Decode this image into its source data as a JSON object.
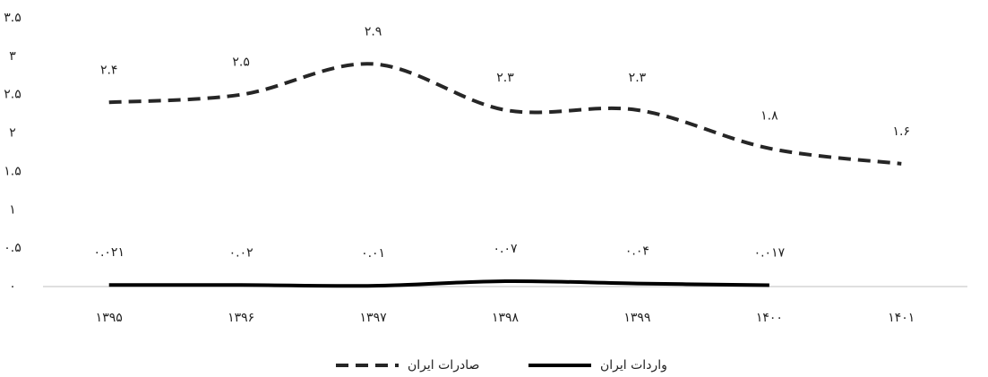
{
  "chart_data": {
    "type": "line",
    "categories": [
      "۱۳۹۵",
      "۱۳۹۶",
      "۱۳۹۷",
      "۱۳۹۸",
      "۱۳۹۹",
      "۱۴۰۰",
      "۱۴۰۱"
    ],
    "series": [
      {
        "name": "صادرات ایران",
        "color": "#262626",
        "line_style": "dashed",
        "values": [
          2.4,
          2.5,
          2.9,
          2.3,
          2.3,
          1.8,
          1.6
        ],
        "value_labels": [
          "۲.۴",
          "۲.۵",
          "۲.۹",
          "۲.۳",
          "۲.۳",
          "۱.۸",
          "۱.۶"
        ]
      },
      {
        "name": "واردات ایران",
        "color": "#000000",
        "line_style": "solid",
        "values": [
          0.021,
          0.02,
          0.01,
          0.07,
          0.04,
          0.017,
          null
        ],
        "value_labels": [
          "۰.۰۲۱",
          "۰.۰۲",
          "۰.۰۱",
          "۰.۰۷",
          "۰.۰۴",
          "۰.۰۱۷",
          null
        ]
      }
    ],
    "ylim": [
      0,
      3.5
    ],
    "yticks": [
      {
        "value": 0,
        "label": "۰"
      },
      {
        "value": 0.5,
        "label": "۰.۵"
      },
      {
        "value": 1,
        "label": "۱"
      },
      {
        "value": 1.5,
        "label": "۱.۵"
      },
      {
        "value": 2,
        "label": "۲"
      },
      {
        "value": 2.5,
        "label": "۲.۵"
      },
      {
        "value": 3,
        "label": "۳"
      },
      {
        "value": 3.5,
        "label": "۳.۵"
      }
    ],
    "grid": false,
    "smooth": true,
    "legend": "bottom"
  }
}
